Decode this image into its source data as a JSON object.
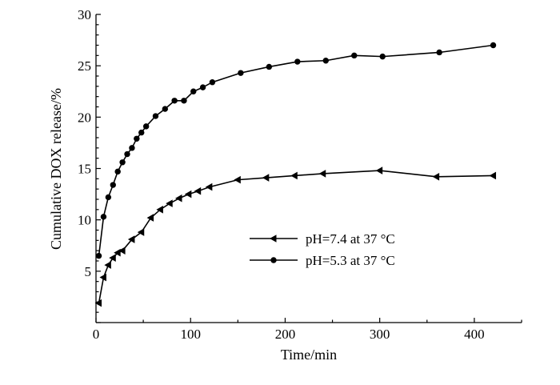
{
  "chart_data": {
    "type": "line",
    "xlabel": "Time/min",
    "ylabel": "Cumulative DOX release/%",
    "xlim": [
      0,
      450
    ],
    "ylim": [
      0,
      30
    ],
    "xticks": [
      0,
      100,
      200,
      300,
      400
    ],
    "yticks": [
      5,
      10,
      15,
      20,
      25,
      30
    ],
    "grid": false,
    "legend_position": "center-right",
    "series": [
      {
        "name": "pH=7.4 at 37 °C",
        "marker": "triangle-left",
        "x": [
          3,
          8,
          13,
          18,
          23,
          28,
          38,
          48,
          58,
          68,
          78,
          88,
          98,
          108,
          120,
          150,
          180,
          210,
          240,
          300,
          360,
          420
        ],
        "y": [
          1.9,
          4.4,
          5.6,
          6.3,
          6.8,
          7.0,
          8.1,
          8.8,
          10.2,
          11.0,
          11.6,
          12.1,
          12.5,
          12.8,
          13.2,
          13.9,
          14.1,
          14.3,
          14.5,
          14.8,
          14.2,
          14.3
        ]
      },
      {
        "name": "pH=5.3 at 37 °C",
        "marker": "circle",
        "x": [
          3,
          8,
          13,
          18,
          23,
          28,
          33,
          38,
          43,
          48,
          53,
          63,
          73,
          83,
          93,
          103,
          113,
          123,
          153,
          183,
          213,
          243,
          273,
          303,
          363,
          420
        ],
        "y": [
          6.5,
          10.3,
          12.2,
          13.4,
          14.7,
          15.6,
          16.4,
          17.0,
          17.9,
          18.5,
          19.1,
          20.1,
          20.8,
          21.6,
          21.6,
          22.5,
          22.9,
          23.4,
          24.3,
          24.9,
          25.4,
          25.5,
          26.0,
          25.9,
          26.3,
          27.0
        ]
      }
    ]
  }
}
